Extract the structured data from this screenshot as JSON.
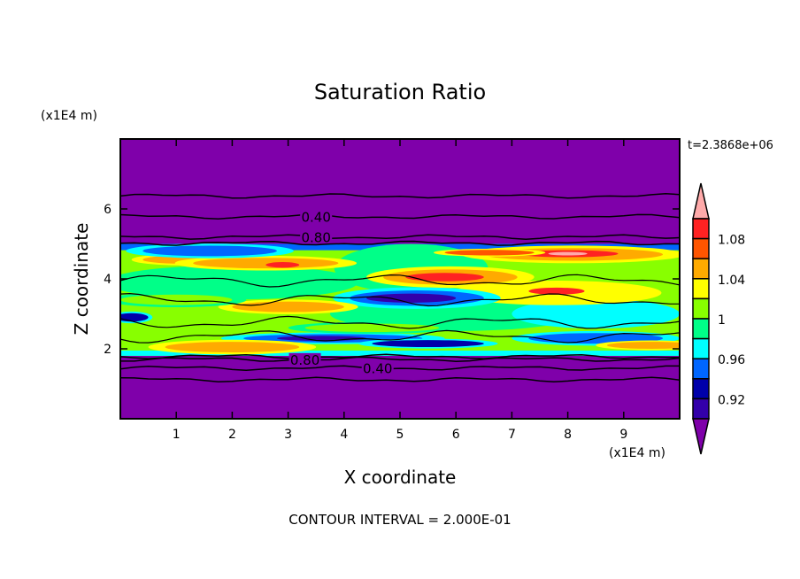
{
  "chart_data": {
    "type": "heatmap",
    "title": "Saturation Ratio",
    "xlabel": "X coordinate",
    "ylabel": "Z coordinate",
    "x_unit": "(x1E4 m)",
    "y_unit": "(x1E4 m)",
    "time_label": "t=2.3868e+06",
    "footer": "CONTOUR INTERVAL = 2.000E-01",
    "xlim": [
      0,
      10
    ],
    "ylim": [
      0,
      8
    ],
    "xticks": [
      "1",
      "2",
      "3",
      "4",
      "5",
      "6",
      "7",
      "8",
      "9"
    ],
    "yticks": [
      "2",
      "4",
      "6"
    ],
    "colorbar": {
      "levels_labels": [
        "1.08",
        "1.04",
        "1",
        "0.96",
        "0.92"
      ],
      "label_values": [
        1.08,
        1.04,
        1.0,
        0.96,
        0.92
      ],
      "bins_top_to_bottom": [
        ">1.10",
        "1.08-1.10",
        "1.06-1.08",
        "1.04-1.06",
        "1.02-1.04",
        "1.00-1.02",
        "0.98-1.00",
        "0.96-0.98",
        "0.94-0.96",
        "0.92-0.94",
        "0.90-0.92",
        "<0.90"
      ],
      "colors": [
        "#ffaaaa",
        "#ff2222",
        "#ff5500",
        "#ffaa00",
        "#ffff00",
        "#88ff00",
        "#00ff88",
        "#00ffff",
        "#0066ff",
        "#0000aa",
        "#3300aa",
        "#7f00aa"
      ]
    },
    "moist_layer": {
      "z_bottom": 1.8,
      "z_top": 5.0,
      "base_level_index": 5
    },
    "features": [
      {
        "x": 5.2,
        "z": 4.3,
        "rx": 1.1,
        "rz": 0.5,
        "c": 6
      },
      {
        "x": 2.0,
        "z": 3.9,
        "rx": 1.8,
        "rz": 0.35,
        "c": 6
      },
      {
        "x": 6.0,
        "z": 3.0,
        "rx": 1.8,
        "rz": 0.35,
        "c": 6
      },
      {
        "x": 8.5,
        "z": 3.0,
        "rx": 1.2,
        "rz": 0.3,
        "c": 7
      },
      {
        "x": 1.2,
        "z": 4.55,
        "rx": 0.8,
        "rz": 0.12,
        "c": 3
      },
      {
        "x": 2.6,
        "z": 4.45,
        "rx": 1.3,
        "rz": 0.15,
        "c": 3
      },
      {
        "x": 2.9,
        "z": 4.4,
        "rx": 0.3,
        "rz": 0.08,
        "c": 1
      },
      {
        "x": 8.1,
        "z": 4.7,
        "rx": 1.6,
        "rz": 0.18,
        "c": 3
      },
      {
        "x": 8.0,
        "z": 4.72,
        "rx": 0.9,
        "rz": 0.1,
        "c": 1
      },
      {
        "x": 8.0,
        "z": 4.72,
        "rx": 0.35,
        "rz": 0.05,
        "c": 0
      },
      {
        "x": 6.6,
        "z": 4.75,
        "rx": 0.8,
        "rz": 0.08,
        "c": 2
      },
      {
        "x": 5.9,
        "z": 4.05,
        "rx": 1.2,
        "rz": 0.22,
        "c": 3
      },
      {
        "x": 5.8,
        "z": 4.05,
        "rx": 0.7,
        "rz": 0.12,
        "c": 1
      },
      {
        "x": 7.8,
        "z": 3.6,
        "rx": 1.5,
        "rz": 0.25,
        "c": 4
      },
      {
        "x": 7.8,
        "z": 3.65,
        "rx": 0.5,
        "rz": 0.1,
        "c": 1
      },
      {
        "x": 1.6,
        "z": 4.8,
        "rx": 1.2,
        "rz": 0.15,
        "c": 8
      },
      {
        "x": 5.3,
        "z": 3.45,
        "rx": 1.2,
        "rz": 0.22,
        "c": 8
      },
      {
        "x": 5.2,
        "z": 3.45,
        "rx": 0.8,
        "rz": 0.13,
        "c": 10
      },
      {
        "x": 3.8,
        "z": 2.3,
        "rx": 1.6,
        "rz": 0.12,
        "c": 8
      },
      {
        "x": 3.6,
        "z": 2.3,
        "rx": 0.8,
        "rz": 0.07,
        "c": 10
      },
      {
        "x": 8.5,
        "z": 2.3,
        "rx": 1.2,
        "rz": 0.15,
        "c": 8
      },
      {
        "x": 0.2,
        "z": 2.9,
        "rx": 0.3,
        "rz": 0.12,
        "c": 9
      },
      {
        "x": 3.0,
        "z": 3.2,
        "rx": 1.0,
        "rz": 0.15,
        "c": 3
      },
      {
        "x": 2.0,
        "z": 2.05,
        "rx": 1.2,
        "rz": 0.15,
        "c": 3
      },
      {
        "x": 5.5,
        "z": 2.15,
        "rx": 1.0,
        "rz": 0.1,
        "c": 9
      },
      {
        "x": 9.5,
        "z": 2.1,
        "rx": 0.8,
        "rz": 0.1,
        "c": 3
      },
      {
        "x": 4.5,
        "z": 2.6,
        "rx": 1.2,
        "rz": 0.12,
        "c": 5
      },
      {
        "x": 1.0,
        "z": 3.4,
        "rx": 1.0,
        "rz": 0.15,
        "c": 5
      }
    ],
    "contours": [
      {
        "level": "0.40",
        "z": 6.37,
        "labeled": false
      },
      {
        "level": "0.40",
        "z": 5.78,
        "labeled": true
      },
      {
        "level": "0.80",
        "z": 5.2,
        "labeled": true
      },
      {
        "level": "1.00",
        "z": 5.02,
        "labeled": false
      },
      {
        "level": "1.00",
        "z": 1.78,
        "labeled": false
      },
      {
        "level": "0.80",
        "z": 1.7,
        "labeled": true
      },
      {
        "level": "0.40",
        "z": 1.45,
        "labeled": true
      },
      {
        "level": "0.40",
        "z": 1.12,
        "labeled": false
      }
    ]
  }
}
